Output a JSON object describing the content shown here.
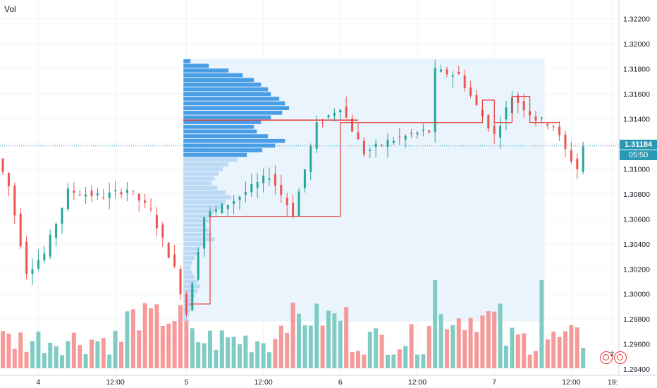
{
  "indicator_label": "Vol",
  "last_price": "1.31184",
  "countdown": "05:50",
  "alerts_count": "2",
  "colors": {
    "up": "#26a69a",
    "down": "#ef5350",
    "up_volume": "#80cbc4",
    "down_volume": "#f59999",
    "vp_highlight": "#4a9ee6",
    "vp_light": "#bcd9f5",
    "vp_background": "#eaf4fd",
    "poc_line": "#e53935",
    "last_price_line": "#2a9ab4"
  },
  "chart_data": {
    "type": "candlestick",
    "symbol_timeframe": "intraday",
    "y_axis": {
      "range": [
        1.2935,
        1.3235
      ],
      "ticks": [
        "1.32200",
        "1.32000",
        "1.31800",
        "1.31600",
        "1.31400",
        "1.31200",
        "1.31000",
        "1.30800",
        "1.30600",
        "1.30400",
        "1.30200",
        "1.30000",
        "1.29800",
        "1.29600",
        "1.29400"
      ],
      "tick_values": [
        1.322,
        1.32,
        1.318,
        1.316,
        1.314,
        1.312,
        1.31,
        1.308,
        1.306,
        1.304,
        1.302,
        1.3,
        1.298,
        1.296,
        1.294
      ]
    },
    "x_axis": {
      "ticks": [
        "4",
        "12:00",
        "5",
        "12:00",
        "6",
        "12:00",
        "7",
        "12:00",
        "19:"
      ],
      "tick_index": [
        6,
        19,
        31,
        44,
        57,
        70,
        83,
        96,
        103
      ]
    },
    "price_segments": [
      {
        "from": 0,
        "to": 2,
        "start": 1.3108,
        "end": 1.3086
      },
      {
        "from": 2,
        "to": 5,
        "start": 1.3086,
        "end": 1.3018
      },
      {
        "from": 5,
        "to": 8,
        "start": 1.3018,
        "end": 1.3032
      },
      {
        "from": 8,
        "to": 12,
        "start": 1.3032,
        "end": 1.3082
      },
      {
        "from": 12,
        "to": 18,
        "start": 1.3082,
        "end": 1.3078
      },
      {
        "from": 18,
        "to": 22,
        "start": 1.3078,
        "end": 1.3084
      },
      {
        "from": 22,
        "to": 26,
        "start": 1.3084,
        "end": 1.3066
      },
      {
        "from": 26,
        "to": 30,
        "start": 1.3066,
        "end": 1.302
      },
      {
        "from": 30,
        "to": 32,
        "start": 1.302,
        "end": 1.2985
      },
      {
        "from": 32,
        "to": 35,
        "start": 1.2985,
        "end": 1.3062
      },
      {
        "from": 35,
        "to": 40,
        "start": 1.3062,
        "end": 1.3075
      },
      {
        "from": 40,
        "to": 46,
        "start": 1.3075,
        "end": 1.3095
      },
      {
        "from": 46,
        "to": 50,
        "start": 1.3095,
        "end": 1.3064
      },
      {
        "from": 50,
        "to": 54,
        "start": 1.3064,
        "end": 1.3135
      },
      {
        "from": 54,
        "to": 58,
        "start": 1.3135,
        "end": 1.315
      },
      {
        "from": 58,
        "to": 62,
        "start": 1.315,
        "end": 1.3113
      },
      {
        "from": 62,
        "to": 66,
        "start": 1.3113,
        "end": 1.3122
      },
      {
        "from": 66,
        "to": 72,
        "start": 1.3122,
        "end": 1.313
      },
      {
        "from": 72,
        "to": 73,
        "start": 1.313,
        "end": 1.313
      },
      {
        "from": 73,
        "to": 74,
        "start": 1.313,
        "end": 1.3178
      },
      {
        "from": 74,
        "to": 78,
        "start": 1.3178,
        "end": 1.3175
      },
      {
        "from": 78,
        "to": 81,
        "start": 1.3175,
        "end": 1.315
      },
      {
        "from": 81,
        "to": 84,
        "start": 1.315,
        "end": 1.3127
      },
      {
        "from": 84,
        "to": 87,
        "start": 1.3127,
        "end": 1.3158
      },
      {
        "from": 87,
        "to": 91,
        "start": 1.3158,
        "end": 1.314
      },
      {
        "from": 91,
        "to": 94,
        "start": 1.314,
        "end": 1.3135
      },
      {
        "from": 94,
        "to": 96,
        "start": 1.3135,
        "end": 1.3115
      },
      {
        "from": 96,
        "to": 98,
        "start": 1.3115,
        "end": 1.31
      },
      {
        "from": 98,
        "to": 99,
        "start": 1.31,
        "end": 1.3118
      }
    ],
    "volume_max": 1.0,
    "volume_profile": {
      "price_range": [
        1.2978,
        1.3188
      ],
      "poc_price": 1.3139,
      "value_area": [
        1.311,
        1.3188
      ],
      "levels": [
        0.05,
        0.18,
        0.32,
        0.42,
        0.5,
        0.55,
        0.6,
        0.62,
        0.68,
        0.72,
        0.75,
        0.7,
        0.62,
        0.55,
        0.5,
        0.52,
        0.6,
        0.72,
        0.65,
        0.56,
        0.45,
        0.38,
        0.32,
        0.28,
        0.25,
        0.22,
        0.2,
        0.24,
        0.3,
        0.34,
        0.3,
        0.26,
        0.22,
        0.2,
        0.18,
        0.16,
        0.18,
        0.2,
        0.22,
        0.16,
        0.12,
        0.1,
        0.08,
        0.06,
        0.05,
        0.06,
        0.08,
        0.1,
        0.12,
        0.1,
        0.08,
        0.07,
        0.06,
        0.05,
        0.04,
        0.03
      ]
    },
    "poc_steps": [
      {
        "x0": 31.5,
        "x1": 35,
        "price": 1.2992
      },
      {
        "x0": 35,
        "x1": 47,
        "price": 1.3062
      },
      {
        "x0": 47,
        "x1": 57,
        "price": 1.3062
      },
      {
        "x0": 57,
        "x1": 75,
        "price": 1.3137
      },
      {
        "x0": 75,
        "x1": 81,
        "price": 1.3137
      },
      {
        "x0": 81,
        "x1": 83,
        "price": 1.3155
      },
      {
        "x0": 83,
        "x1": 86,
        "price": 1.3137
      },
      {
        "x0": 86,
        "x1": 89,
        "price": 1.3158
      },
      {
        "x0": 89,
        "x1": 94,
        "price": 1.3137
      }
    ],
    "last_price_value": 1.31184
  }
}
